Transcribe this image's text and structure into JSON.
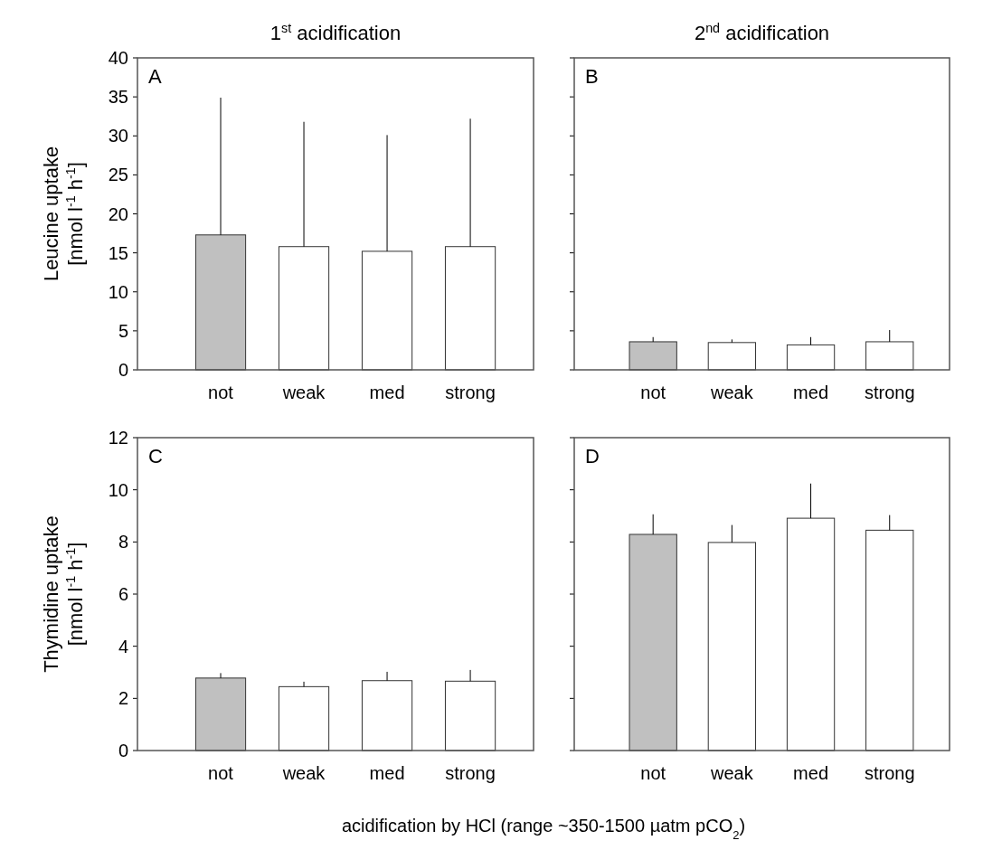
{
  "chart_data": [
    {
      "type": "bar",
      "title": "1$^{st}$ acidification",
      "ylabel": "Leucine uptake\n[nmol l$^{-1}$ h$^{-1}$]",
      "categories": [
        "not",
        "weak",
        "med",
        "strong"
      ],
      "values": [
        17.3,
        15.8,
        15.2,
        15.8
      ],
      "colors": [
        "#c0c0c0",
        "#ffffff",
        "#ffffff",
        "#ffffff"
      ],
      "errors": [
        [
          17.3,
          34.9
        ],
        [
          15.8,
          31.8
        ],
        [
          15.2,
          30.1
        ],
        [
          15.8,
          32.2
        ]
      ],
      "ylim": [
        0,
        40
      ],
      "yticks": [
        0,
        5,
        10,
        15,
        20,
        25,
        30,
        35,
        40
      ],
      "annotations": [
        "A"
      ]
    },
    {
      "type": "bar",
      "title": "2$^{nd}$ acidification",
      "categories": [
        "not",
        "weak",
        "med",
        "strong"
      ],
      "values": [
        3.6,
        3.5,
        3.2,
        3.6
      ],
      "colors": [
        "#c0c0c0",
        "#ffffff",
        "#ffffff",
        "#ffffff"
      ],
      "errors": [
        [
          3.6,
          4.2
        ],
        [
          3.5,
          3.9
        ],
        [
          3.2,
          4.2
        ],
        [
          3.6,
          5.1
        ]
      ],
      "ylim": [
        0,
        40
      ],
      "yticks": [
        0,
        5,
        10,
        15,
        20,
        25,
        30,
        35,
        40
      ],
      "tick_labels": "x",
      "annotations": [
        "B"
      ]
    },
    {
      "type": "bar",
      "ylabel": "Thymidine uptake\n[nmol l$^{-1}$ h$^{-1}$]",
      "xlabel": "acidification by HCl (range ~350-1500 µatm pCO$_{2}$)",
      "categories": [
        "not",
        "weak",
        "med",
        "strong"
      ],
      "values": [
        2.78,
        2.45,
        2.68,
        2.66
      ],
      "colors": [
        "#c0c0c0",
        "#ffffff",
        "#ffffff",
        "#ffffff"
      ],
      "errors": [
        [
          2.78,
          2.97
        ],
        [
          2.45,
          2.64
        ],
        [
          2.68,
          3.02
        ],
        [
          2.66,
          3.09
        ]
      ],
      "ylim": [
        0,
        12
      ],
      "yticks": [
        0,
        2,
        4,
        6,
        8,
        10,
        12
      ],
      "annotations": [
        "C"
      ]
    },
    {
      "type": "bar",
      "categories": [
        "not",
        "weak",
        "med",
        "strong"
      ],
      "values": [
        8.29,
        7.98,
        8.91,
        8.45
      ],
      "colors": [
        "#c0c0c0",
        "#ffffff",
        "#ffffff",
        "#ffffff"
      ],
      "errors": [
        [
          8.29,
          9.06
        ],
        [
          7.98,
          8.65
        ],
        [
          8.91,
          10.24
        ],
        [
          8.45,
          9.03
        ]
      ],
      "ylim": [
        0,
        12
      ],
      "yticks": [
        0,
        2,
        4,
        6,
        8,
        10,
        12
      ],
      "tick_labels": "x",
      "annotations": [
        "D"
      ]
    }
  ]
}
